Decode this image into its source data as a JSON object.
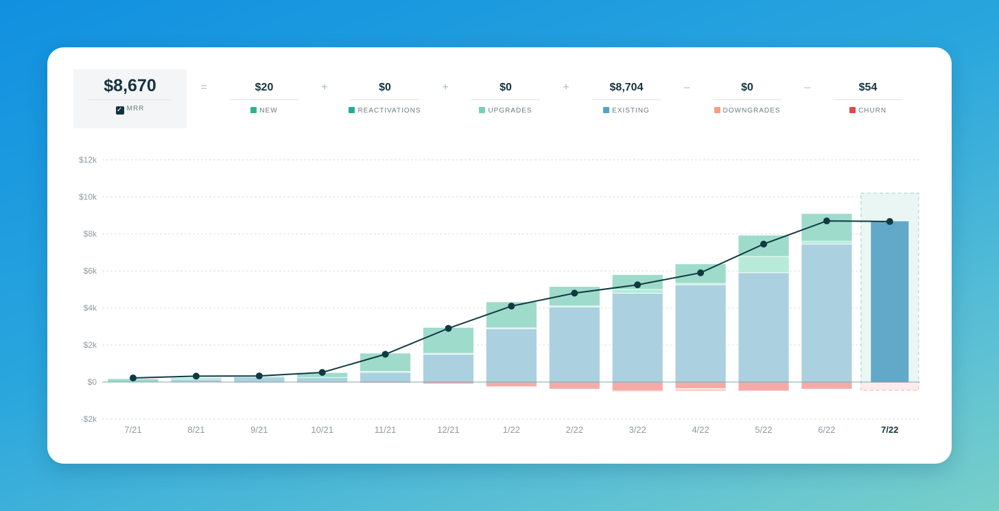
{
  "summary": {
    "mrr": {
      "value": "$8,670",
      "label": "MRR",
      "checked": true
    },
    "operators": [
      "=",
      "+",
      "+",
      "+",
      "–",
      "–"
    ],
    "items": [
      {
        "value": "$20",
        "label": "NEW",
        "color": "#2bb58f"
      },
      {
        "value": "$0",
        "label": "REACTIVATIONS",
        "color": "#23ad96"
      },
      {
        "value": "$0",
        "label": "UPGRADES",
        "color": "#75cfbf"
      },
      {
        "value": "$8,704",
        "label": "EXISTING",
        "color": "#52a3c9"
      },
      {
        "value": "$0",
        "label": "DOWNGRADES",
        "color": "#f4a07e"
      },
      {
        "value": "$54",
        "label": "CHURN",
        "color": "#e0474c"
      }
    ]
  },
  "chart_data": {
    "type": "bar",
    "title": "",
    "xlabel": "",
    "ylabel": "",
    "ylim": [
      -2000,
      12000
    ],
    "yticks": [
      -2000,
      0,
      2000,
      4000,
      6000,
      8000,
      10000,
      12000
    ],
    "ytick_labels": [
      "-$2k",
      "$0",
      "$2k",
      "$4k",
      "$6k",
      "$8k",
      "$10k",
      "$12k"
    ],
    "categories": [
      "7/21",
      "8/21",
      "9/21",
      "10/21",
      "11/21",
      "12/21",
      "1/22",
      "2/22",
      "3/22",
      "4/22",
      "5/22",
      "6/22",
      "7/22"
    ],
    "highlighted_category": "7/22",
    "grid": true,
    "series": [
      {
        "name": "Existing",
        "color": "#abd0df",
        "values": [
          0,
          150,
          270,
          250,
          520,
          1500,
          2880,
          4050,
          4800,
          5250,
          5900,
          7450,
          8704
        ]
      },
      {
        "name": "Upgrades",
        "color": "#b8ead9",
        "values": [
          0,
          0,
          0,
          0,
          50,
          50,
          50,
          60,
          200,
          80,
          880,
          150,
          0
        ]
      },
      {
        "name": "New",
        "color": "#9edbcb",
        "values": [
          180,
          80,
          60,
          260,
          990,
          1400,
          1400,
          1050,
          800,
          1050,
          1150,
          1500,
          20
        ]
      },
      {
        "name": "Churn",
        "color": "#f6aaa7",
        "values": [
          -20,
          -20,
          -40,
          -40,
          -50,
          -100,
          -250,
          -380,
          -480,
          -350,
          -480,
          -380,
          -54
        ]
      },
      {
        "name": "Downgrades",
        "color": "#fbd3cd",
        "values": [
          0,
          0,
          0,
          0,
          0,
          0,
          0,
          0,
          -50,
          -150,
          0,
          0,
          0
        ]
      }
    ],
    "mrr_line": {
      "name": "MRR",
      "color": "#103a42",
      "values": [
        220,
        320,
        330,
        520,
        1500,
        2900,
        4100,
        4800,
        5250,
        5900,
        7450,
        8700,
        8670
      ]
    },
    "projection_box": {
      "category": "7/22",
      "ymin": -450,
      "ymax": 10200
    }
  }
}
